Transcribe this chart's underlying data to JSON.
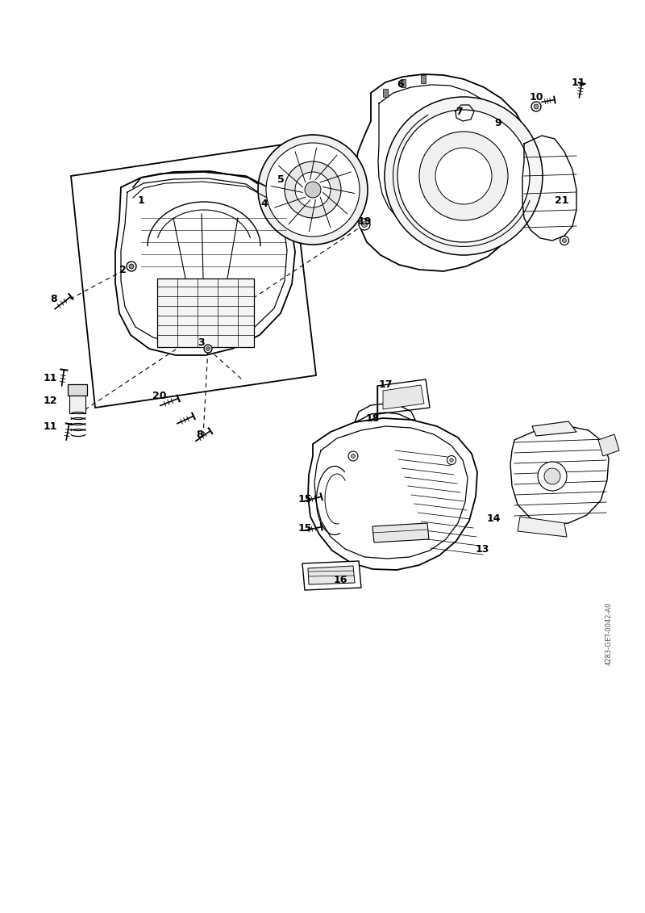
{
  "bg_color": "#ffffff",
  "watermark": "4283-GET-0042-A0",
  "fig_width": 8.0,
  "fig_height": 11.31,
  "labels": [
    [
      175,
      248,
      "1"
    ],
    [
      152,
      335,
      "2"
    ],
    [
      250,
      425,
      "3"
    ],
    [
      328,
      252,
      "4"
    ],
    [
      348,
      222,
      "5"
    ],
    [
      497,
      105,
      "6"
    ],
    [
      570,
      138,
      "7"
    ],
    [
      67,
      370,
      "8"
    ],
    [
      248,
      538,
      "8"
    ],
    [
      618,
      152,
      "9"
    ],
    [
      665,
      120,
      "10"
    ],
    [
      62,
      468,
      "11"
    ],
    [
      62,
      528,
      "11"
    ],
    [
      717,
      103,
      "11"
    ],
    [
      62,
      497,
      "12"
    ],
    [
      598,
      680,
      "13"
    ],
    [
      612,
      642,
      "14"
    ],
    [
      378,
      618,
      "15"
    ],
    [
      378,
      655,
      "15"
    ],
    [
      422,
      718,
      "16"
    ],
    [
      478,
      477,
      "17"
    ],
    [
      462,
      518,
      "18"
    ],
    [
      452,
      275,
      "19"
    ],
    [
      198,
      490,
      "20"
    ],
    [
      697,
      248,
      "21"
    ]
  ]
}
